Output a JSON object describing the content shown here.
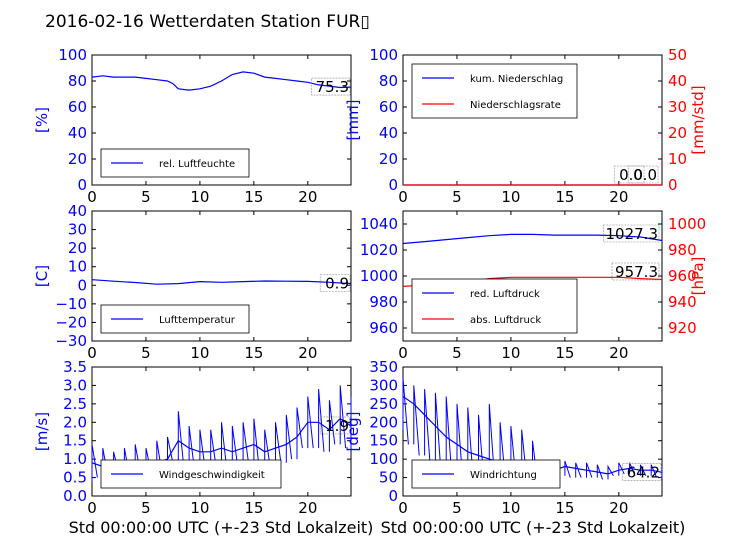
{
  "title": "2016-02-16 Wetterdaten Station FUR▯",
  "xlabel": "Std 00:00:00 UTC (+-23 Std Lokalzeit)",
  "x_ticks": [
    "0",
    "5",
    "10",
    "15",
    "20"
  ],
  "colors": {
    "blue": "#0000ff",
    "red": "#ff0000",
    "black": "#000000"
  },
  "chart_data": [
    {
      "type": "line",
      "ylabel": "[%]",
      "xlim": [
        0,
        24
      ],
      "ylim": [
        0,
        100
      ],
      "y_ticks": [
        "0",
        "20",
        "40",
        "60",
        "80",
        "100"
      ],
      "legend": {
        "placement": "lower-left",
        "entries": [
          "rel. Luftfeuchte"
        ]
      },
      "annotation": "75.3",
      "series": [
        {
          "name": "rel. Luftfeuchte",
          "color": "#0000ff",
          "x": [
            0,
            1,
            2,
            3,
            4,
            5,
            6,
            7,
            7.5,
            8,
            9,
            10,
            11,
            12,
            13,
            14,
            15,
            16,
            17,
            18,
            19,
            20,
            21,
            22,
            23,
            24
          ],
          "y": [
            83,
            84,
            83,
            83,
            83,
            82,
            81,
            80,
            78,
            74,
            73,
            74,
            76,
            80,
            85,
            87,
            86,
            83,
            82,
            81,
            80,
            79,
            77,
            76,
            75,
            75.3
          ]
        }
      ]
    },
    {
      "type": "line",
      "ylabel": "[mm]",
      "ylabel2": "[mm/std]",
      "xlim": [
        0,
        24
      ],
      "ylim": [
        0,
        100
      ],
      "ylim2": [
        0,
        50
      ],
      "y_ticks": [
        "0",
        "20",
        "40",
        "60",
        "80",
        "100"
      ],
      "y2_ticks": [
        "0",
        "10",
        "20",
        "30",
        "40",
        "50"
      ],
      "legend": {
        "placement": "upper-left",
        "entries": [
          "kum. Niederschlag",
          "Niederschlagsrate"
        ]
      },
      "annotations": [
        "0.0",
        "0.0"
      ],
      "series": [
        {
          "name": "kum. Niederschlag",
          "color": "#0000ff",
          "axis": "left",
          "x": [
            0,
            24
          ],
          "y": [
            0,
            0
          ]
        },
        {
          "name": "Niederschlagsrate",
          "color": "#ff0000",
          "axis": "right",
          "x": [
            0,
            24
          ],
          "y": [
            0,
            0
          ]
        }
      ]
    },
    {
      "type": "line",
      "ylabel": "[C]",
      "xlim": [
        0,
        24
      ],
      "ylim": [
        -30,
        40
      ],
      "y_ticks": [
        "−30",
        "−20",
        "−10",
        "0",
        "10",
        "20",
        "30",
        "40"
      ],
      "legend": {
        "placement": "lower-left",
        "entries": [
          "Lufttemperatur"
        ]
      },
      "annotation": "0.9",
      "series": [
        {
          "name": "Lufttemperatur",
          "color": "#0000ff",
          "x": [
            0,
            2,
            4,
            6,
            8,
            10,
            12,
            14,
            16,
            18,
            20,
            22,
            24
          ],
          "y": [
            3,
            2.2,
            1.5,
            0.6,
            0.9,
            2.0,
            1.6,
            2.0,
            2.3,
            2.2,
            2.1,
            1.6,
            0.9
          ]
        }
      ]
    },
    {
      "type": "line",
      "ylabel": "",
      "ylabel2": "[hPa]",
      "xlim": [
        0,
        24
      ],
      "ylim": [
        950,
        1050
      ],
      "ylim2": [
        910,
        1010
      ],
      "y_ticks": [
        "960",
        "980",
        "1000",
        "1020",
        "1040"
      ],
      "y2_ticks": [
        "920",
        "940",
        "960",
        "980",
        "1000"
      ],
      "legend": {
        "placement": "lower-left",
        "entries": [
          "red. Luftdruck",
          "abs. Luftdruck"
        ]
      },
      "annotations": [
        "1027.3",
        "957.3"
      ],
      "series": [
        {
          "name": "red. Luftdruck",
          "color": "#0000ff",
          "axis": "left",
          "x": [
            0,
            2,
            4,
            6,
            8,
            10,
            12,
            14,
            16,
            18,
            20,
            22,
            24
          ],
          "y": [
            1025,
            1026.5,
            1028,
            1029.5,
            1031,
            1032,
            1032,
            1031.5,
            1031.5,
            1031.5,
            1031,
            1030,
            1027.3
          ]
        },
        {
          "name": "abs. Luftdruck",
          "color": "#ff0000",
          "axis": "right",
          "x": [
            0,
            2,
            4,
            6,
            8,
            10,
            12,
            14,
            16,
            18,
            20,
            22,
            24
          ],
          "y": [
            952,
            953,
            954,
            956,
            958,
            959,
            959,
            959,
            959,
            959,
            959,
            958,
            957.3
          ]
        }
      ]
    },
    {
      "type": "line",
      "ylabel": "[m/s]",
      "xlim": [
        0,
        24
      ],
      "ylim": [
        0,
        3.5
      ],
      "y_ticks": [
        "0.0",
        "0.5",
        "1.0",
        "1.5",
        "2.0",
        "2.5",
        "3.0",
        "3.5"
      ],
      "legend": {
        "placement": "lower-left",
        "entries": [
          "Windgeschwindigkeit"
        ]
      },
      "annotation": "1.9",
      "series": [
        {
          "name": "Windgeschwindigkeit",
          "color": "#0000ff",
          "x": [
            0,
            1,
            2,
            3,
            4,
            5,
            6,
            7,
            8,
            9,
            10,
            11,
            12,
            13,
            14,
            15,
            16,
            17,
            18,
            19,
            20,
            21,
            22,
            23,
            24
          ],
          "y": [
            0.9,
            0.8,
            0.8,
            0.9,
            0.9,
            0.9,
            0.9,
            1.0,
            1.5,
            1.3,
            1.2,
            1.2,
            1.3,
            1.2,
            1.3,
            1.4,
            1.2,
            1.3,
            1.4,
            1.6,
            2.0,
            2.0,
            1.8,
            2.1,
            1.9
          ],
          "min": [
            0.4,
            0.5,
            0.5,
            0.6,
            0.5,
            0.6,
            0.6,
            0.6,
            0.9,
            0.8,
            0.7,
            0.7,
            0.8,
            0.7,
            0.8,
            0.9,
            0.7,
            0.8,
            0.9,
            1.0,
            1.3,
            1.3,
            1.2,
            1.4,
            1.3
          ],
          "max": [
            1.4,
            1.3,
            1.2,
            1.3,
            1.4,
            1.3,
            1.5,
            1.6,
            2.3,
            1.9,
            1.8,
            1.8,
            2.0,
            1.9,
            2.0,
            2.1,
            1.8,
            2.0,
            2.2,
            2.4,
            2.7,
            2.9,
            2.6,
            3.0,
            2.7
          ]
        }
      ]
    },
    {
      "type": "line",
      "ylabel": "[deg]",
      "xlim": [
        0,
        24
      ],
      "ylim": [
        0,
        350
      ],
      "y_ticks": [
        "0",
        "50",
        "100",
        "150",
        "200",
        "250",
        "300",
        "350"
      ],
      "legend": {
        "placement": "lower-left",
        "entries": [
          "Windrichtung"
        ]
      },
      "annotation": "64.2",
      "series": [
        {
          "name": "Windrichtung",
          "color": "#0000ff",
          "x": [
            0,
            1,
            2,
            3,
            4,
            5,
            6,
            7,
            8,
            9,
            10,
            11,
            12,
            13,
            14,
            15,
            16,
            17,
            18,
            19,
            20,
            21,
            22,
            23,
            24
          ],
          "y": [
            270,
            250,
            220,
            190,
            160,
            140,
            120,
            110,
            100,
            90,
            90,
            85,
            60,
            45,
            70,
            80,
            75,
            70,
            65,
            60,
            70,
            75,
            70,
            70,
            64.2
          ],
          "min": [
            180,
            140,
            110,
            90,
            70,
            60,
            55,
            50,
            45,
            40,
            40,
            35,
            35,
            30,
            50,
            55,
            50,
            50,
            50,
            45,
            55,
            60,
            55,
            55,
            50
          ],
          "max": [
            320,
            300,
            290,
            280,
            270,
            250,
            240,
            220,
            250,
            200,
            190,
            180,
            150,
            80,
            90,
            95,
            90,
            90,
            85,
            80,
            90,
            90,
            85,
            85,
            80
          ]
        }
      ]
    }
  ]
}
